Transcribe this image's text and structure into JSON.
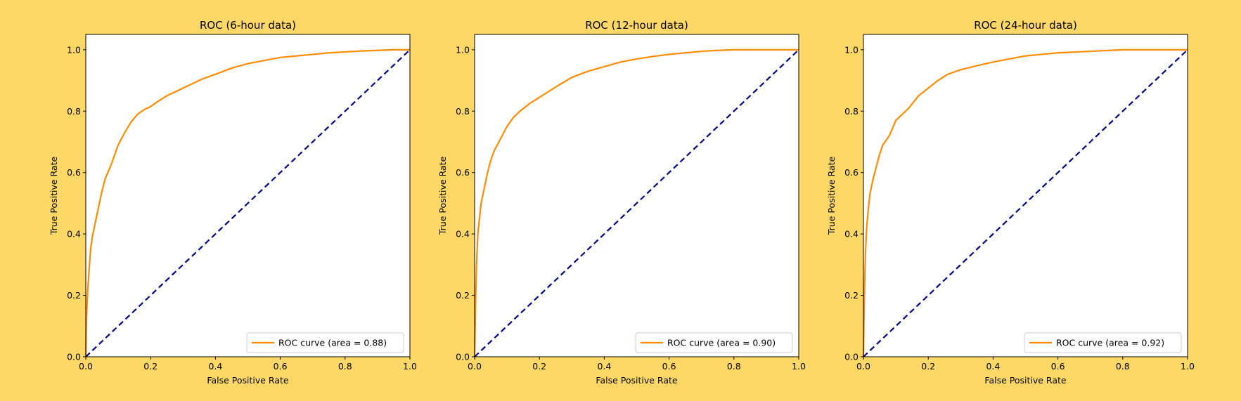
{
  "figure": {
    "background_color": "#FDD867",
    "plot_background": "#FFFFFF"
  },
  "chart_data": [
    {
      "type": "line",
      "title": "ROC (6-hour data)",
      "xlabel": "False Positive Rate",
      "ylabel": "True Positive Rate",
      "xlim": [
        0.0,
        1.0
      ],
      "ylim": [
        0.0,
        1.05
      ],
      "xticks": [
        "0.0",
        "0.2",
        "0.4",
        "0.6",
        "0.8",
        "1.0"
      ],
      "yticks": [
        "0.0",
        "0.2",
        "0.4",
        "0.6",
        "0.8",
        "1.0"
      ],
      "legend": {
        "label": "ROC curve (area = 0.88)",
        "position": "lower-right"
      },
      "series": [
        {
          "name": "ROC curve (area = 0.88)",
          "color": "#FF8C00",
          "style": "solid",
          "x": [
            0.0,
            0.002,
            0.005,
            0.01,
            0.015,
            0.02,
            0.03,
            0.04,
            0.05,
            0.06,
            0.08,
            0.1,
            0.12,
            0.14,
            0.16,
            0.18,
            0.2,
            0.22,
            0.25,
            0.28,
            0.3,
            0.33,
            0.36,
            0.4,
            0.45,
            0.5,
            0.55,
            0.6,
            0.65,
            0.7,
            0.75,
            0.8,
            0.85,
            0.9,
            0.95,
            1.0
          ],
          "y": [
            0.0,
            0.12,
            0.2,
            0.28,
            0.35,
            0.39,
            0.44,
            0.49,
            0.54,
            0.58,
            0.63,
            0.69,
            0.73,
            0.765,
            0.79,
            0.805,
            0.815,
            0.83,
            0.85,
            0.865,
            0.875,
            0.89,
            0.905,
            0.92,
            0.94,
            0.955,
            0.965,
            0.975,
            0.98,
            0.985,
            0.99,
            0.993,
            0.996,
            0.998,
            1.0,
            1.0
          ]
        },
        {
          "name": "baseline",
          "color": "#000080",
          "style": "dashed",
          "x": [
            0.0,
            1.0
          ],
          "y": [
            0.0,
            1.0
          ]
        }
      ]
    },
    {
      "type": "line",
      "title": "ROC (12-hour data)",
      "xlabel": "False Positive Rate",
      "ylabel": "True Positive Rate",
      "xlim": [
        0.0,
        1.0
      ],
      "ylim": [
        0.0,
        1.05
      ],
      "xticks": [
        "0.0",
        "0.2",
        "0.4",
        "0.6",
        "0.8",
        "1.0"
      ],
      "yticks": [
        "0.0",
        "0.2",
        "0.4",
        "0.6",
        "0.8",
        "1.0"
      ],
      "legend": {
        "label": "ROC curve (area = 0.90)",
        "position": "lower-right"
      },
      "series": [
        {
          "name": "ROC curve (area = 0.90)",
          "color": "#FF8C00",
          "style": "solid",
          "x": [
            0.0,
            0.003,
            0.006,
            0.01,
            0.015,
            0.02,
            0.03,
            0.04,
            0.05,
            0.06,
            0.08,
            0.1,
            0.12,
            0.14,
            0.17,
            0.2,
            0.23,
            0.26,
            0.3,
            0.35,
            0.4,
            0.45,
            0.5,
            0.55,
            0.6,
            0.65,
            0.7,
            0.75,
            0.8,
            0.9,
            1.0
          ],
          "y": [
            0.0,
            0.18,
            0.3,
            0.4,
            0.45,
            0.5,
            0.55,
            0.6,
            0.64,
            0.67,
            0.71,
            0.75,
            0.78,
            0.8,
            0.825,
            0.845,
            0.865,
            0.885,
            0.91,
            0.93,
            0.945,
            0.96,
            0.97,
            0.978,
            0.985,
            0.99,
            0.995,
            0.998,
            1.0,
            1.0,
            1.0
          ]
        },
        {
          "name": "baseline",
          "color": "#000080",
          "style": "dashed",
          "x": [
            0.0,
            1.0
          ],
          "y": [
            0.0,
            1.0
          ]
        }
      ]
    },
    {
      "type": "line",
      "title": "ROC (24-hour data)",
      "xlabel": "False Positive Rate",
      "ylabel": "True Positive Rate",
      "xlim": [
        0.0,
        1.0
      ],
      "ylim": [
        0.0,
        1.05
      ],
      "xticks": [
        "0.0",
        "0.2",
        "0.4",
        "0.6",
        "0.8",
        "1.0"
      ],
      "yticks": [
        "0.0",
        "0.2",
        "0.4",
        "0.6",
        "0.8",
        "1.0"
      ],
      "legend": {
        "label": "ROC curve (area = 0.92)",
        "position": "lower-right"
      },
      "series": [
        {
          "name": "ROC curve (area = 0.92)",
          "color": "#FF8C00",
          "style": "solid",
          "x": [
            0.0,
            0.003,
            0.006,
            0.01,
            0.015,
            0.02,
            0.03,
            0.04,
            0.05,
            0.06,
            0.08,
            0.1,
            0.12,
            0.14,
            0.17,
            0.2,
            0.23,
            0.26,
            0.3,
            0.35,
            0.4,
            0.45,
            0.5,
            0.55,
            0.6,
            0.7,
            0.8,
            0.9,
            1.0
          ],
          "y": [
            0.0,
            0.2,
            0.33,
            0.42,
            0.48,
            0.53,
            0.58,
            0.62,
            0.66,
            0.69,
            0.72,
            0.77,
            0.79,
            0.81,
            0.85,
            0.875,
            0.9,
            0.92,
            0.935,
            0.948,
            0.96,
            0.97,
            0.98,
            0.985,
            0.99,
            0.995,
            1.0,
            1.0,
            1.0
          ]
        },
        {
          "name": "baseline",
          "color": "#000080",
          "style": "dashed",
          "x": [
            0.0,
            1.0
          ],
          "y": [
            0.0,
            1.0
          ]
        }
      ]
    }
  ]
}
